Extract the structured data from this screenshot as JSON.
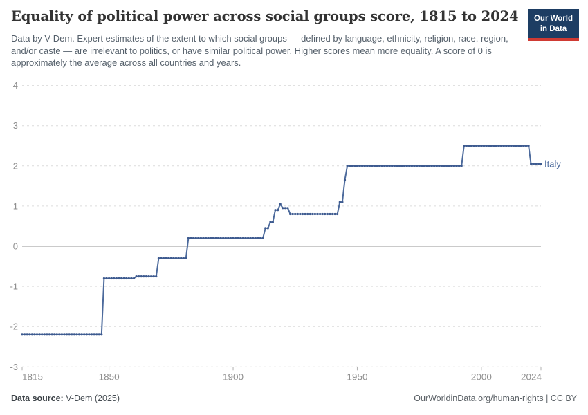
{
  "header": {
    "title": "Equality of political power across social groups score, 1815 to 2024",
    "subtitle": "Data by V-Dem. Expert estimates of the extent to which social groups — defined by language, ethnicity, religion, race, region, and/or caste — are irrelevant to politics, or have similar political power. Higher scores mean more equality. A score of 0 is approximately the average across all countries and years."
  },
  "logo": {
    "line1": "Our World",
    "line2": "in Data",
    "bg_color": "#1d3d63",
    "accent_color": "#cf3a33"
  },
  "footer": {
    "source_label": "Data source:",
    "source_value": "V-Dem (2025)",
    "credit": "OurWorldinData.org/human-rights | CC BY"
  },
  "chart_data": {
    "type": "line",
    "title": "Equality of political power across social groups score, 1815 to 2024",
    "entity_label": "Italy",
    "x": {
      "min": 1815,
      "max": 2024,
      "ticks": [
        1815,
        1850,
        1900,
        1950,
        2000,
        2024
      ]
    },
    "y": {
      "min": -3,
      "max": 4,
      "ticks": [
        4,
        3,
        2,
        1,
        0,
        -1,
        -2,
        -3
      ]
    },
    "grid": "dashed horizontal gridlines at each y tick, solid line at zero",
    "legend_position": "end-of-line label",
    "colors": {
      "gridline": "#dcdcdc",
      "zero_line": "#949494",
      "tick_label": "#8f8f8f",
      "tick_mark": "#b0b0b0"
    },
    "series": [
      {
        "name": "Italy",
        "line_color": "#4c6a9c",
        "marker_color": "#3d5a8f",
        "note": "step_points are [year, value]; value holds until the next step; yearly markers drawn for every year through end_year",
        "step_points": [
          [
            1815,
            -2.2
          ],
          [
            1848,
            -0.8
          ],
          [
            1861,
            -0.75
          ],
          [
            1870,
            -0.3
          ],
          [
            1882,
            0.2
          ],
          [
            1913,
            0.45
          ],
          [
            1915,
            0.6
          ],
          [
            1917,
            0.9
          ],
          [
            1919,
            1.05
          ],
          [
            1920,
            0.95
          ],
          [
            1923,
            0.8
          ],
          [
            1943,
            1.1
          ],
          [
            1945,
            1.65
          ],
          [
            1946,
            2.0
          ],
          [
            1993,
            2.5
          ],
          [
            2020,
            2.05
          ]
        ],
        "end_year": 2024
      }
    ]
  }
}
